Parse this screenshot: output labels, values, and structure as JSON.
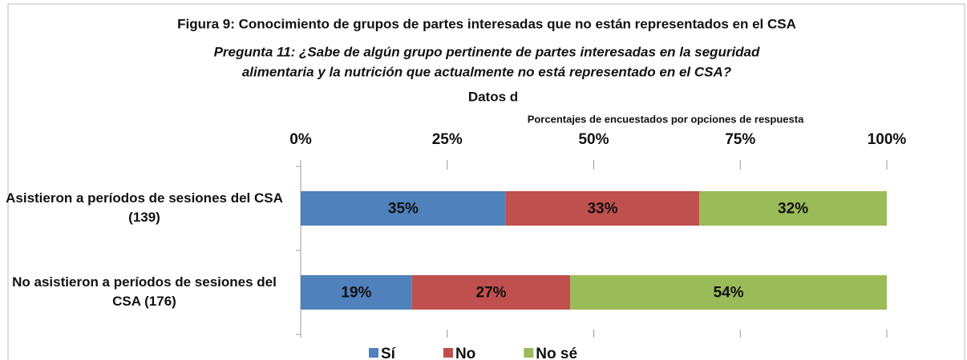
{
  "chart_data": {
    "type": "stacked_bar_horizontal",
    "title": "Figura 9: Conocimiento de grupos de partes interesadas que no están representados en el CSA",
    "subtitle": [
      "Pregunta 11: ¿Sabe de algún grupo pertinente de partes interesadas en la seguridad",
      "alimentaria y la nutrición que actualmente no está representado en el CSA?"
    ],
    "chart_title": "Datos d",
    "x_label": "Porcentajes de encuestados por opciones de respuesta",
    "categories": [
      "Asistieron a períodos de sesiones del CSA (139)",
      "No asistieron a períodos de sesiones del CSA (176)"
    ],
    "series": [
      {
        "name": "Sí",
        "color": "#4f81bd",
        "values": [
          35,
          19
        ],
        "value_labels": [
          "35%",
          "19%"
        ]
      },
      {
        "name": "No",
        "color": "#c0504d",
        "values": [
          33,
          27
        ],
        "value_labels": [
          "33%",
          "27%"
        ]
      },
      {
        "name": "No sé",
        "color": "#9bbb59",
        "values": [
          32,
          54
        ],
        "value_labels": [
          "32%",
          "54%"
        ]
      }
    ],
    "xlim": [
      0,
      100
    ],
    "xticks": [
      {
        "value": 0,
        "label": "0%"
      },
      {
        "value": 25,
        "label": "25%"
      },
      {
        "value": 50,
        "label": "50%"
      },
      {
        "value": 75,
        "label": "75%"
      },
      {
        "value": 100,
        "label": "100%"
      }
    ],
    "legend": "bottom"
  }
}
